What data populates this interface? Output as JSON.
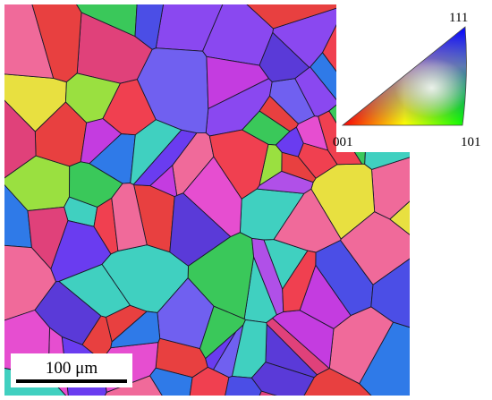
{
  "legend": {
    "top": "111",
    "bottom_left": "001",
    "bottom_right": "101"
  },
  "scale_bar": {
    "label": "100 μm"
  }
}
